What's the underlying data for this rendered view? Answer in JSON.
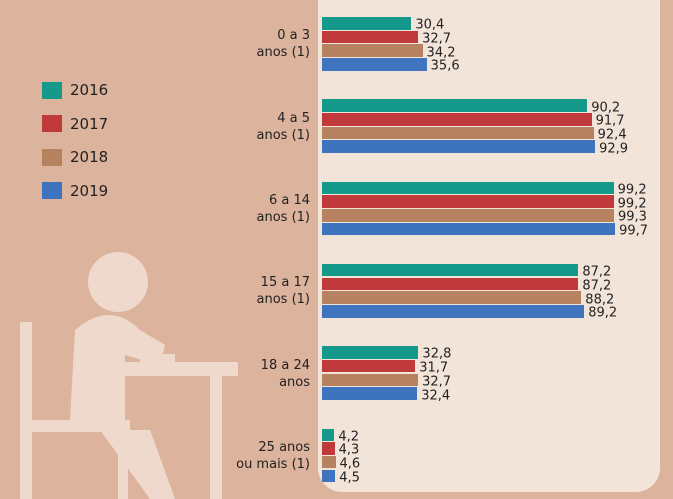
{
  "chart_data": {
    "type": "hbar",
    "categories": [
      "0 a 3\nanos (1)",
      "4 a 5\nanos (1)",
      "6 a 14\nanos (1)",
      "15 a 17\nanos (1)",
      "18 a 24\nanos",
      "25 anos\nou mais (1)"
    ],
    "series": [
      {
        "name": "2016",
        "color": "#14998a",
        "values": [
          30.4,
          90.2,
          99.2,
          87.2,
          32.8,
          4.2
        ],
        "value_labels": [
          "30,4",
          "90,2",
          "99,2",
          "87,2",
          "32,8",
          "4,2"
        ]
      },
      {
        "name": "2017",
        "color": "#c0393b",
        "values": [
          32.7,
          91.7,
          99.2,
          87.2,
          31.7,
          4.3
        ],
        "value_labels": [
          "32,7",
          "91,7",
          "99,2",
          "87,2",
          "31,7",
          "4,3"
        ]
      },
      {
        "name": "2018",
        "color": "#b78260",
        "values": [
          34.2,
          92.4,
          99.3,
          88.2,
          32.7,
          4.6
        ],
        "value_labels": [
          "34,2",
          "92,4",
          "99,3",
          "88,2",
          "32,7",
          "4,6"
        ]
      },
      {
        "name": "2019",
        "color": "#3e74be",
        "values": [
          35.6,
          92.9,
          99.7,
          89.2,
          32.4,
          4.5
        ],
        "value_labels": [
          "35,6",
          "92,9",
          "99,7",
          "89,2",
          "32,4",
          "4,5"
        ]
      }
    ]
  }
}
